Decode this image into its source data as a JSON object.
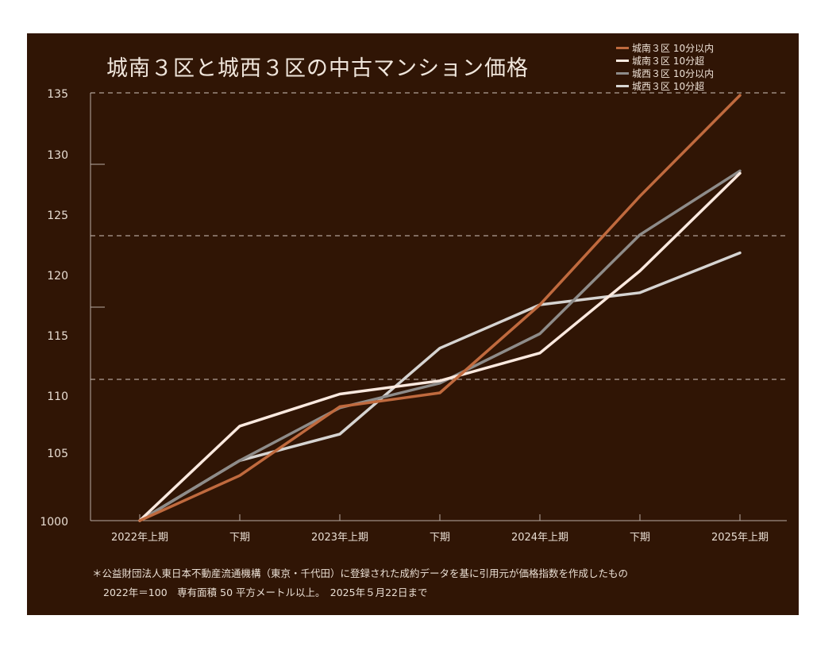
{
  "chart_data": {
    "type": "line",
    "title": "城南３区と城西３区の中古マンション価格",
    "categories": [
      "2022年上期",
      "下期",
      "2023年上期",
      "下期",
      "2024年上期",
      "下期",
      "2025年上期"
    ],
    "y_tick_labels": [
      "1000",
      "105",
      "110",
      "115",
      "120",
      "125",
      "130",
      "135"
    ],
    "ylim": [
      100,
      135
    ],
    "grid": "dashed at 110, 122, 135",
    "legend_position": "top-right",
    "series": [
      {
        "name": "城南３区 10分以内",
        "color": "#c06a3e",
        "values": [
          100,
          103.3,
          109.0,
          110.2,
          117.5,
          126.5,
          134.8
        ]
      },
      {
        "name": "城南３区 10分超",
        "color": "#fbe9df",
        "values": [
          100,
          107.3,
          110.1,
          111.2,
          113.5,
          120.3,
          128.4
        ]
      },
      {
        "name": "城西３区 10分以内",
        "color": "#8e8c8a",
        "values": [
          100,
          104.4,
          108.9,
          111.0,
          115.1,
          123.3,
          128.6
        ]
      },
      {
        "name": "城西３区 10分超",
        "color": "#d6d4d2",
        "values": [
          100,
          104.4,
          106.6,
          113.9,
          117.5,
          118.5,
          121.8
        ]
      }
    ]
  },
  "notes": [
    "＊公益財団法人東日本不動産流通機構（東京・千代田）に登録された成約データを基に引用元が価格指数を作成したもの",
    "2022年＝100　専有面積 50 平方メートル以上。　2025年５月22日まで"
  ]
}
